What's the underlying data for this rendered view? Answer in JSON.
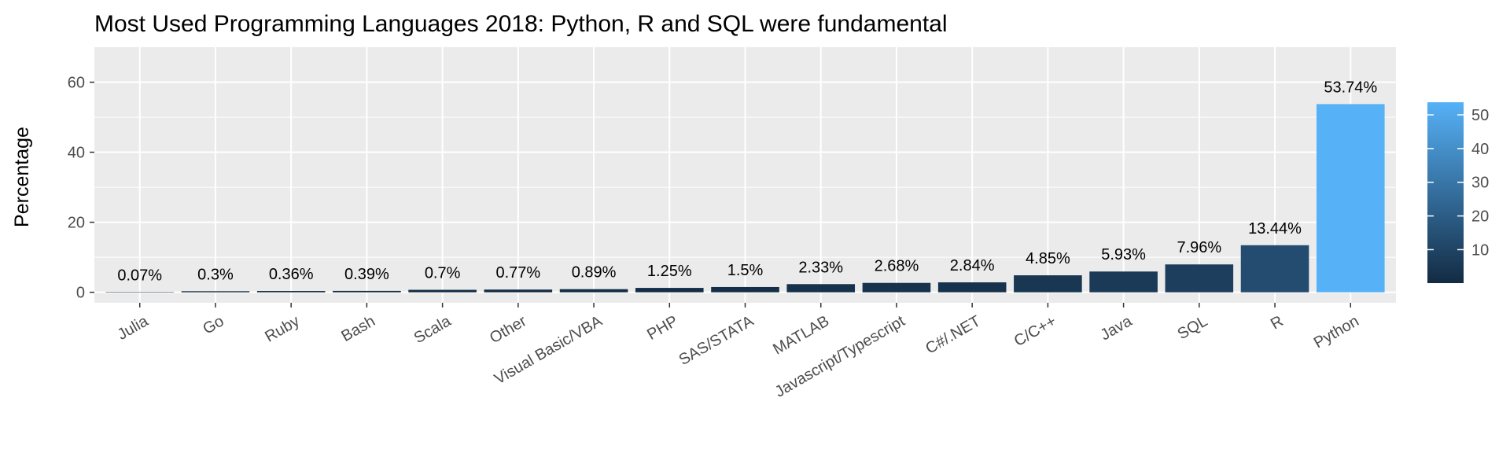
{
  "chart_data": {
    "type": "bar",
    "title": "Most Used Programming Languages 2018: Python, R and SQL were fundamental",
    "xlabel": "",
    "ylabel": "Percentage",
    "ylim": [
      -3,
      70
    ],
    "yticks": [
      0,
      20,
      40,
      60
    ],
    "grid": true,
    "categories": [
      "Julia",
      "Go",
      "Ruby",
      "Bash",
      "Scala",
      "Other",
      "Visual Basic/VBA",
      "PHP",
      "SAS/STATA",
      "MATLAB",
      "Javascript/Typescript",
      "C#/.NET",
      "C/C++",
      "Java",
      "SQL",
      "R",
      "Python"
    ],
    "values": [
      0.07,
      0.3,
      0.36,
      0.39,
      0.7,
      0.77,
      0.89,
      1.25,
      1.5,
      2.33,
      2.68,
      2.84,
      4.85,
      5.93,
      7.96,
      13.44,
      53.74
    ],
    "data_labels": [
      "0.07%",
      "0.3%",
      "0.36%",
      "0.39%",
      "0.7%",
      "0.77%",
      "0.89%",
      "1.25%",
      "1.5%",
      "2.33%",
      "2.68%",
      "2.84%",
      "4.85%",
      "5.93%",
      "7.96%",
      "13.44%",
      "53.74%"
    ],
    "fill_scale": {
      "low_color": "#132B43",
      "high_color": "#56B1F7",
      "legend_ticks": [
        10,
        20,
        30,
        40,
        50
      ],
      "legend_placement": "right"
    },
    "colors": {
      "panel_background": "#EBEBEB",
      "grid": "#FFFFFF"
    }
  }
}
